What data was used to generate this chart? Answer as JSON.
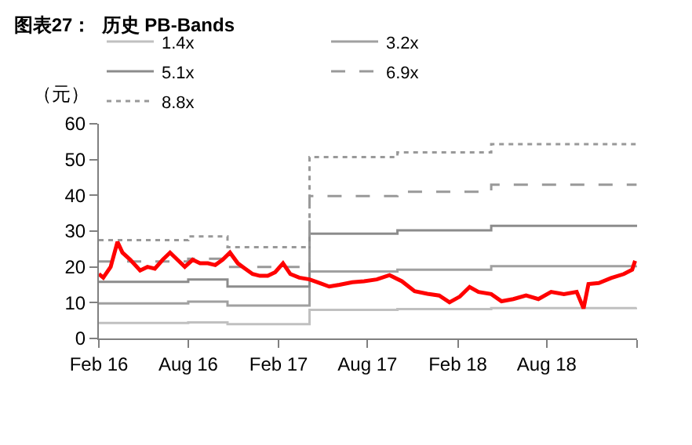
{
  "chart_data": {
    "type": "line",
    "title": "图表27：  历史 PB-Bands",
    "ylabel": "（元）",
    "xlim": [
      "2016-02-01",
      "2019-02-01"
    ],
    "xticks": [
      {
        "value": "2016-02-01",
        "label": "Feb 16"
      },
      {
        "value": "2016-08-01",
        "label": "Aug 16"
      },
      {
        "value": "2017-02-01",
        "label": "Feb 17"
      },
      {
        "value": "2017-08-01",
        "label": "Aug 17"
      },
      {
        "value": "2018-02-01",
        "label": "Feb 18"
      },
      {
        "value": "2018-08-01",
        "label": "Aug 18"
      },
      {
        "value": "2019-02-01",
        "label": null
      }
    ],
    "ylim": [
      0,
      60
    ],
    "yticks": [
      0,
      10,
      20,
      30,
      40,
      50,
      60
    ],
    "legend": "top",
    "series": [
      {
        "type": "step",
        "name": "1.4x",
        "color": "#c0c0c0",
        "line_style": "solid",
        "x": [
          "2016-02-01",
          "2016-08-01",
          "2016-10-20",
          "2017-04-05",
          "2017-10-01",
          "2018-04-10",
          "2019-01-31"
        ],
        "values": [
          4.3,
          4.5,
          4.0,
          8.0,
          8.2,
          8.5,
          8.6
        ]
      },
      {
        "type": "step",
        "name": "3.2x",
        "color": "#a0a0a0",
        "line_style": "solid",
        "x": [
          "2016-02-01",
          "2016-08-01",
          "2016-10-20",
          "2017-04-05",
          "2017-10-01",
          "2018-04-10",
          "2019-01-31"
        ],
        "values": [
          9.8,
          10.3,
          9.2,
          18.7,
          19.2,
          20.2,
          20.3
        ]
      },
      {
        "type": "step",
        "name": "5.1x",
        "color": "#8c8c8c",
        "line_style": "solid",
        "x": [
          "2016-02-01",
          "2016-08-01",
          "2016-10-20",
          "2017-04-05",
          "2017-10-01",
          "2018-04-10",
          "2019-01-31"
        ],
        "values": [
          15.8,
          16.5,
          14.5,
          29.3,
          30.2,
          31.5,
          31.8
        ]
      },
      {
        "type": "step",
        "name": "6.9x",
        "color": "#999999",
        "line_style": "dashed",
        "x": [
          "2016-02-01",
          "2016-08-01",
          "2016-10-20",
          "2017-04-05",
          "2017-10-01",
          "2018-04-10",
          "2019-01-31"
        ],
        "values": [
          21.5,
          22.3,
          20.0,
          39.8,
          41.0,
          43.0,
          43.0
        ]
      },
      {
        "type": "step",
        "name": "8.8x",
        "color": "#999999",
        "line_style": "dotted",
        "x": [
          "2016-02-01",
          "2016-08-01",
          "2016-10-20",
          "2017-04-05",
          "2017-10-01",
          "2018-04-10",
          "2019-01-31"
        ],
        "values": [
          27.5,
          28.5,
          25.5,
          50.7,
          52.0,
          54.3,
          54.5
        ]
      },
      {
        "color": "#ff0000",
        "line_style": "solid",
        "x": [
          "2016-02-01",
          "2016-02-10",
          "2016-02-25",
          "2016-03-10",
          "2016-03-20",
          "2016-04-05",
          "2016-04-25",
          "2016-05-10",
          "2016-05-25",
          "2016-06-10",
          "2016-06-25",
          "2016-07-10",
          "2016-07-25",
          "2016-08-10",
          "2016-08-25",
          "2016-09-10",
          "2016-09-25",
          "2016-10-10",
          "2016-10-25",
          "2016-11-10",
          "2016-11-25",
          "2016-12-10",
          "2016-12-25",
          "2017-01-10",
          "2017-01-25",
          "2017-02-10",
          "2017-02-25",
          "2017-03-15",
          "2017-04-05",
          "2017-04-25",
          "2017-05-15",
          "2017-06-05",
          "2017-07-01",
          "2017-07-25",
          "2017-08-20",
          "2017-09-15",
          "2017-10-10",
          "2017-11-05",
          "2017-12-01",
          "2017-12-25",
          "2018-01-15",
          "2018-02-05",
          "2018-02-25",
          "2018-03-15",
          "2018-04-10",
          "2018-05-01",
          "2018-05-25",
          "2018-06-20",
          "2018-07-15",
          "2018-08-10",
          "2018-09-05",
          "2018-10-01",
          "2018-10-15",
          "2018-10-25",
          "2018-11-15",
          "2018-12-10",
          "2019-01-05",
          "2019-01-22",
          "2019-01-28"
        ],
        "values": [
          18,
          17,
          20,
          27,
          24,
          22,
          19,
          20,
          19.5,
          22,
          24,
          22,
          20,
          22,
          21,
          21,
          20.5,
          22,
          24,
          21,
          19.5,
          18,
          17.5,
          17.5,
          18.5,
          21,
          18,
          17,
          16.5,
          15.5,
          14.5,
          15,
          15.7,
          16,
          16.5,
          17.7,
          16,
          13.2,
          12.5,
          12,
          10.1,
          11.7,
          14.4,
          13,
          12.4,
          10.4,
          11,
          12,
          11,
          13,
          12.4,
          13,
          8.4,
          15.2,
          15.5,
          16.9,
          18,
          19.2,
          21.7
        ]
      }
    ]
  }
}
